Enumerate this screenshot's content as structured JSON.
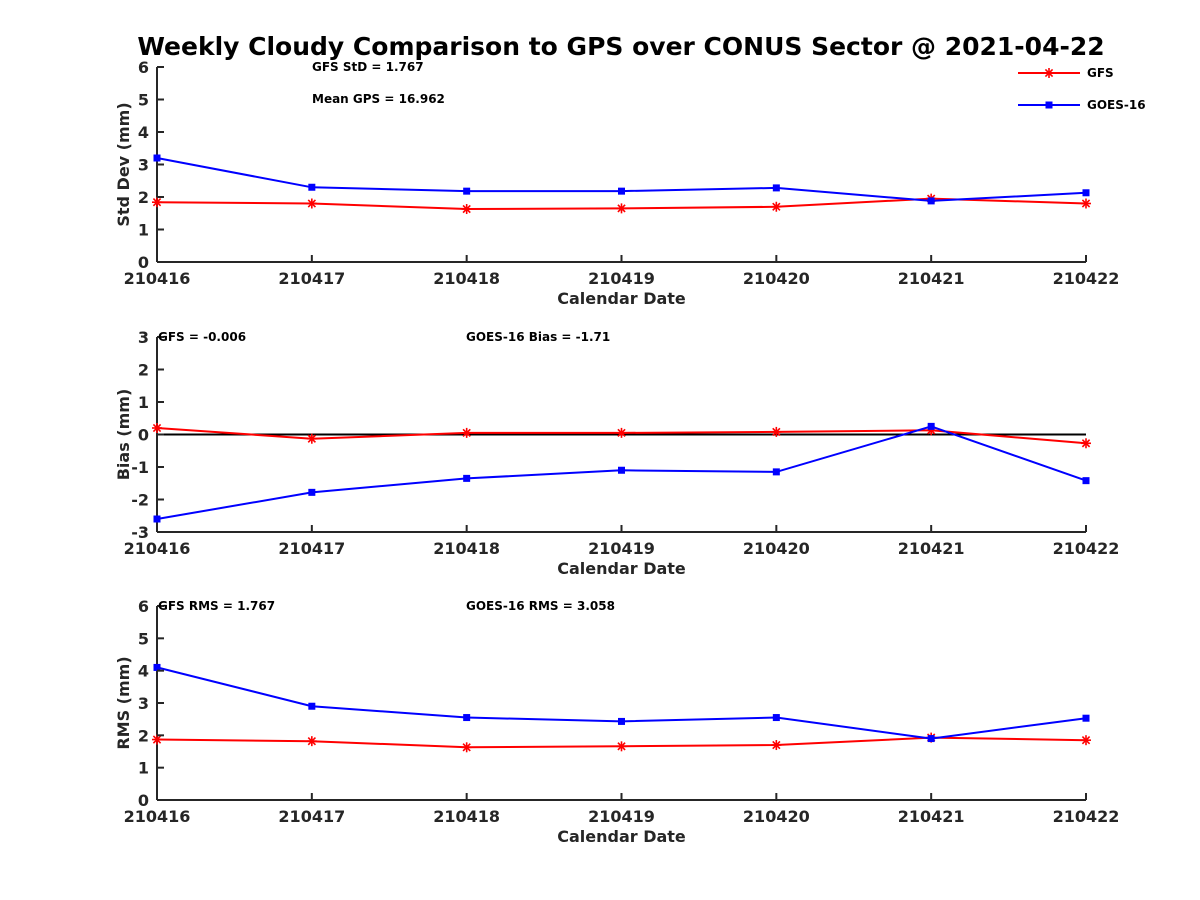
{
  "title": "Weekly Cloudy Comparison to GPS over CONUS Sector @ 2021-04-22",
  "legend": {
    "placement": "top-right",
    "entries": [
      {
        "label": "GFS",
        "color": "#ff0000",
        "marker": "asterisk"
      },
      {
        "label": "GOES-16",
        "color": "#0000ff",
        "marker": "square"
      }
    ]
  },
  "chart_data": [
    {
      "type": "line",
      "xlabel": "Calendar Date",
      "ylabel": "Std Dev (mm)",
      "categories": [
        "210416",
        "210417",
        "210418",
        "210419",
        "210420",
        "210421",
        "210422"
      ],
      "ylim": [
        0,
        6
      ],
      "yticks": [
        0,
        1,
        2,
        3,
        4,
        5,
        6
      ],
      "zero_line": false,
      "annotations": [
        "GFS StD = 1.767",
        "Mean GPS = 16.962"
      ],
      "series": [
        {
          "name": "GFS",
          "color": "#ff0000",
          "marker": "asterisk",
          "values": [
            1.84,
            1.8,
            1.63,
            1.65,
            1.7,
            1.95,
            1.8
          ]
        },
        {
          "name": "GOES-16",
          "color": "#0000ff",
          "marker": "square",
          "values": [
            3.2,
            2.3,
            2.18,
            2.18,
            2.28,
            1.88,
            2.13
          ]
        }
      ]
    },
    {
      "type": "line",
      "xlabel": "Calendar Date",
      "ylabel": "Bias (mm)",
      "categories": [
        "210416",
        "210417",
        "210418",
        "210419",
        "210420",
        "210421",
        "210422"
      ],
      "ylim": [
        -3,
        3
      ],
      "yticks": [
        -3,
        -2,
        -1,
        0,
        1,
        2,
        3
      ],
      "zero_line": true,
      "annotations": [
        "GFS = -0.006",
        "GOES-16 Bias  = -1.71"
      ],
      "series": [
        {
          "name": "GFS",
          "color": "#ff0000",
          "marker": "asterisk",
          "values": [
            0.2,
            -0.13,
            0.05,
            0.05,
            0.08,
            0.13,
            -0.27
          ]
        },
        {
          "name": "GOES-16",
          "color": "#0000ff",
          "marker": "square",
          "values": [
            -2.6,
            -1.78,
            -1.35,
            -1.1,
            -1.15,
            0.25,
            -1.42
          ]
        }
      ]
    },
    {
      "type": "line",
      "xlabel": "Calendar Date",
      "ylabel": "RMS (mm)",
      "categories": [
        "210416",
        "210417",
        "210418",
        "210419",
        "210420",
        "210421",
        "210422"
      ],
      "ylim": [
        0,
        6
      ],
      "yticks": [
        0,
        1,
        2,
        3,
        4,
        5,
        6
      ],
      "zero_line": false,
      "annotations": [
        "GFS RMS = 1.767",
        "GOES-16 RMS = 3.058"
      ],
      "series": [
        {
          "name": "GFS",
          "color": "#ff0000",
          "marker": "asterisk",
          "values": [
            1.87,
            1.82,
            1.63,
            1.66,
            1.7,
            1.93,
            1.85
          ]
        },
        {
          "name": "GOES-16",
          "color": "#0000ff",
          "marker": "square",
          "values": [
            4.1,
            2.9,
            2.55,
            2.43,
            2.55,
            1.9,
            2.53
          ]
        }
      ]
    }
  ]
}
